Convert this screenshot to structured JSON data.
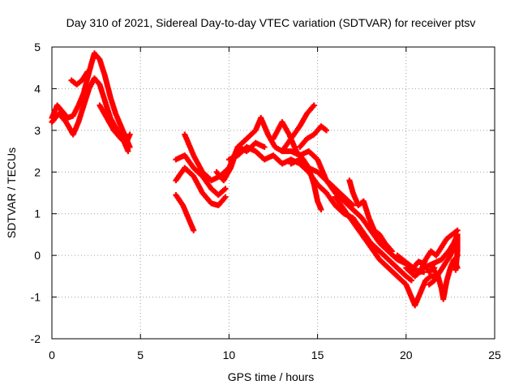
{
  "chart_data": {
    "type": "scatter",
    "title": "Day 310 of 2021, Sidereal Day-to-day VTEC variation (SDTVAR) for receiver ptsv",
    "xlabel": "GPS time / hours",
    "ylabel": "SDTVAR / TECUs",
    "xlim": [
      0,
      25
    ],
    "ylim": [
      -2,
      5
    ],
    "x_ticks": [
      0,
      5,
      10,
      15,
      20,
      25
    ],
    "x_tick_labels": [
      "0",
      "5",
      "10",
      "15",
      "20",
      "25"
    ],
    "y_ticks": [
      -2,
      -1,
      0,
      1,
      2,
      3,
      4,
      5
    ],
    "y_tick_labels": [
      "-2",
      "-1",
      "0",
      "1",
      "2",
      "3",
      "4",
      "5"
    ],
    "grid": true,
    "marker": "plus",
    "color": "#ff0000",
    "series": [
      {
        "name": "trace-1",
        "points": [
          [
            0.0,
            3.3
          ],
          [
            0.3,
            3.6
          ],
          [
            0.6,
            3.45
          ],
          [
            0.9,
            3.3
          ],
          [
            1.2,
            3.35
          ],
          [
            1.5,
            3.6
          ],
          [
            1.8,
            3.9
          ],
          [
            2.1,
            4.4
          ],
          [
            2.4,
            4.85
          ],
          [
            2.7,
            4.7
          ],
          [
            3.0,
            4.3
          ],
          [
            3.3,
            3.8
          ],
          [
            3.6,
            3.4
          ],
          [
            3.9,
            3.1
          ],
          [
            4.2,
            2.8
          ],
          [
            4.4,
            2.6
          ]
        ]
      },
      {
        "name": "trace-2",
        "points": [
          [
            0.0,
            3.2
          ],
          [
            0.4,
            3.4
          ],
          [
            0.8,
            3.2
          ],
          [
            1.2,
            2.9
          ],
          [
            1.5,
            3.2
          ],
          [
            1.8,
            3.6
          ],
          [
            2.1,
            4.0
          ],
          [
            2.4,
            4.25
          ],
          [
            2.7,
            4.1
          ],
          [
            3.0,
            3.7
          ],
          [
            3.3,
            3.3
          ],
          [
            3.7,
            3.0
          ],
          [
            4.0,
            2.8
          ],
          [
            4.3,
            2.5
          ]
        ]
      },
      {
        "name": "trace-3",
        "points": [
          [
            1.1,
            4.2
          ],
          [
            1.4,
            4.1
          ],
          [
            1.7,
            4.2
          ],
          [
            2.0,
            4.4
          ]
        ]
      },
      {
        "name": "trace-4",
        "points": [
          [
            2.7,
            3.6
          ],
          [
            3.1,
            3.3
          ],
          [
            3.5,
            3.0
          ],
          [
            3.9,
            2.8
          ],
          [
            4.2,
            2.7
          ],
          [
            4.4,
            2.9
          ]
        ]
      },
      {
        "name": "trace-5",
        "points": [
          [
            7.0,
            2.3
          ],
          [
            7.5,
            2.4
          ],
          [
            8.0,
            2.1
          ],
          [
            8.5,
            1.9
          ],
          [
            9.0,
            1.6
          ],
          [
            9.4,
            1.45
          ],
          [
            9.8,
            1.6
          ]
        ]
      },
      {
        "name": "trace-6",
        "points": [
          [
            7.0,
            1.8
          ],
          [
            7.5,
            2.1
          ],
          [
            8.0,
            1.9
          ],
          [
            8.5,
            1.5
          ],
          [
            9.0,
            1.25
          ],
          [
            9.4,
            1.2
          ],
          [
            9.8,
            1.4
          ]
        ]
      },
      {
        "name": "trace-7",
        "points": [
          [
            7.5,
            2.9
          ],
          [
            8.0,
            2.4
          ],
          [
            8.5,
            2.0
          ],
          [
            9.0,
            1.8
          ],
          [
            9.5,
            1.9
          ],
          [
            10.0,
            2.1
          ],
          [
            10.5,
            2.6
          ],
          [
            11.0,
            2.5
          ],
          [
            11.5,
            2.7
          ],
          [
            12.0,
            2.6
          ]
        ]
      },
      {
        "name": "trace-8",
        "points": [
          [
            7.0,
            1.45
          ],
          [
            7.4,
            1.2
          ],
          [
            7.7,
            0.9
          ],
          [
            8.0,
            0.6
          ]
        ]
      },
      {
        "name": "trace-9",
        "points": [
          [
            9.3,
            2.0
          ],
          [
            9.7,
            1.8
          ],
          [
            10.1,
            2.1
          ],
          [
            10.5,
            2.6
          ],
          [
            11.0,
            2.8
          ],
          [
            11.5,
            3.0
          ],
          [
            11.8,
            3.3
          ],
          [
            12.2,
            2.9
          ],
          [
            12.6,
            2.6
          ],
          [
            13.0,
            2.5
          ],
          [
            13.5,
            2.5
          ],
          [
            14.0,
            2.4
          ],
          [
            14.5,
            2.5
          ],
          [
            15.0,
            2.3
          ],
          [
            15.5,
            1.8
          ],
          [
            16.0,
            1.6
          ],
          [
            16.5,
            1.4
          ],
          [
            17.0,
            1.2
          ]
        ]
      },
      {
        "name": "trace-10",
        "points": [
          [
            10.0,
            2.3
          ],
          [
            10.5,
            2.4
          ],
          [
            11.0,
            2.6
          ],
          [
            11.5,
            2.5
          ],
          [
            12.0,
            2.3
          ],
          [
            12.5,
            2.4
          ],
          [
            13.0,
            2.2
          ],
          [
            13.5,
            2.3
          ],
          [
            14.0,
            2.2
          ],
          [
            14.5,
            2.0
          ],
          [
            15.0,
            1.7
          ],
          [
            15.5,
            1.5
          ],
          [
            16.0,
            1.2
          ],
          [
            16.5,
            1.0
          ],
          [
            17.0,
            0.9
          ],
          [
            17.5,
            0.6
          ],
          [
            18.0,
            0.3
          ],
          [
            18.5,
            0.1
          ],
          [
            19.0,
            -0.1
          ],
          [
            19.5,
            -0.3
          ],
          [
            20.0,
            -0.5
          ],
          [
            20.3,
            -0.6
          ]
        ]
      },
      {
        "name": "trace-11",
        "points": [
          [
            12.5,
            2.8
          ],
          [
            13.0,
            3.2
          ],
          [
            13.4,
            2.9
          ],
          [
            13.8,
            2.5
          ],
          [
            14.2,
            2.3
          ],
          [
            14.5,
            2.1
          ],
          [
            14.8,
            1.7
          ],
          [
            15.0,
            1.3
          ],
          [
            15.2,
            1.1
          ]
        ]
      },
      {
        "name": "trace-12",
        "points": [
          [
            13.0,
            2.5
          ],
          [
            13.5,
            2.8
          ],
          [
            14.0,
            3.1
          ],
          [
            14.4,
            3.4
          ],
          [
            14.8,
            3.6
          ]
        ]
      },
      {
        "name": "trace-13",
        "points": [
          [
            14.0,
            2.6
          ],
          [
            14.4,
            2.8
          ],
          [
            14.8,
            2.9
          ],
          [
            15.2,
            3.1
          ],
          [
            15.5,
            3.0
          ]
        ]
      },
      {
        "name": "trace-14",
        "points": [
          [
            13.5,
            2.2
          ],
          [
            14.0,
            2.3
          ],
          [
            14.5,
            2.1
          ],
          [
            15.0,
            2.0
          ],
          [
            15.5,
            1.8
          ],
          [
            16.0,
            1.5
          ],
          [
            16.5,
            1.3
          ],
          [
            17.0,
            1.1
          ],
          [
            17.5,
            0.9
          ],
          [
            18.0,
            0.6
          ],
          [
            18.5,
            0.3
          ],
          [
            19.0,
            0.1
          ],
          [
            19.5,
            -0.1
          ],
          [
            20.0,
            -0.2
          ],
          [
            20.5,
            -0.35
          ],
          [
            21.0,
            -0.4
          ]
        ]
      },
      {
        "name": "trace-15",
        "points": [
          [
            16.0,
            1.4
          ],
          [
            16.5,
            1.1
          ],
          [
            17.0,
            0.8
          ],
          [
            17.5,
            0.5
          ],
          [
            18.0,
            0.2
          ],
          [
            18.5,
            -0.1
          ],
          [
            19.0,
            -0.3
          ],
          [
            19.5,
            -0.5
          ],
          [
            20.0,
            -0.7
          ],
          [
            20.3,
            -1.0
          ],
          [
            20.5,
            -1.2
          ],
          [
            20.8,
            -0.9
          ],
          [
            21.1,
            -0.6
          ],
          [
            21.4,
            -0.5
          ],
          [
            21.8,
            -0.5
          ]
        ]
      },
      {
        "name": "trace-16",
        "points": [
          [
            16.8,
            1.8
          ],
          [
            17.0,
            1.5
          ],
          [
            17.3,
            1.2
          ],
          [
            17.6,
            1.3
          ],
          [
            17.9,
            0.9
          ],
          [
            18.2,
            0.6
          ],
          [
            18.5,
            0.5
          ],
          [
            18.8,
            0.3
          ],
          [
            19.2,
            0.1
          ]
        ]
      },
      {
        "name": "trace-17",
        "points": [
          [
            19.5,
            0.0
          ],
          [
            19.8,
            -0.1
          ],
          [
            20.1,
            -0.2
          ],
          [
            20.4,
            -0.3
          ],
          [
            20.7,
            -0.15
          ],
          [
            21.0,
            -0.2
          ],
          [
            21.3,
            -0.4
          ],
          [
            21.6,
            -0.3
          ]
        ]
      },
      {
        "name": "trace-18",
        "points": [
          [
            20.8,
            -0.4
          ],
          [
            21.1,
            -0.1
          ],
          [
            21.4,
            0.1
          ],
          [
            21.7,
            0.0
          ],
          [
            22.0,
            0.2
          ],
          [
            22.3,
            0.4
          ],
          [
            22.6,
            0.5
          ],
          [
            22.9,
            0.6
          ]
        ]
      },
      {
        "name": "trace-19",
        "points": [
          [
            21.3,
            -0.7
          ],
          [
            21.6,
            -0.6
          ],
          [
            21.9,
            -0.4
          ],
          [
            22.2,
            -0.2
          ],
          [
            22.5,
            0.0
          ],
          [
            22.8,
            0.3
          ],
          [
            22.9,
            0.0
          ]
        ]
      },
      {
        "name": "trace-20",
        "points": [
          [
            21.5,
            -0.3
          ],
          [
            21.8,
            -0.5
          ],
          [
            22.0,
            -0.8
          ],
          [
            22.1,
            -1.05
          ],
          [
            22.3,
            -0.6
          ],
          [
            22.5,
            -0.3
          ],
          [
            22.7,
            -0.1
          ],
          [
            22.9,
            -0.3
          ]
        ]
      },
      {
        "name": "trace-21",
        "points": [
          [
            20.0,
            -0.3
          ],
          [
            20.5,
            -0.5
          ],
          [
            21.0,
            -0.3
          ],
          [
            21.5,
            -0.2
          ],
          [
            22.0,
            -0.1
          ],
          [
            22.4,
            0.1
          ],
          [
            22.7,
            0.3
          ],
          [
            22.9,
            0.5
          ],
          [
            22.9,
            0.1
          ],
          [
            22.8,
            -0.35
          ]
        ]
      }
    ]
  }
}
